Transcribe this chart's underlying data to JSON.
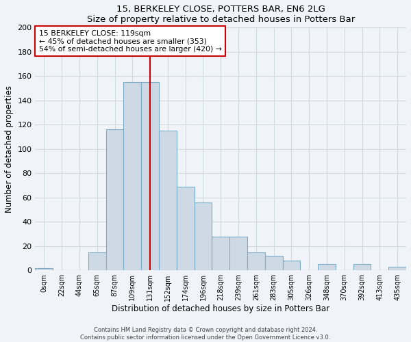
{
  "title": "15, BERKELEY CLOSE, POTTERS BAR, EN6 2LG",
  "subtitle": "Size of property relative to detached houses in Potters Bar",
  "xlabel": "Distribution of detached houses by size in Potters Bar",
  "ylabel": "Number of detached properties",
  "bin_labels": [
    "0sqm",
    "22sqm",
    "44sqm",
    "65sqm",
    "87sqm",
    "109sqm",
    "131sqm",
    "152sqm",
    "174sqm",
    "196sqm",
    "218sqm",
    "239sqm",
    "261sqm",
    "283sqm",
    "305sqm",
    "326sqm",
    "348sqm",
    "370sqm",
    "392sqm",
    "413sqm",
    "435sqm"
  ],
  "bar_heights": [
    2,
    0,
    0,
    15,
    116,
    155,
    155,
    115,
    69,
    56,
    28,
    28,
    15,
    12,
    8,
    0,
    5,
    0,
    5,
    0,
    3
  ],
  "bar_color": "#cdd9e5",
  "bar_edge_color": "#7badc8",
  "vline_x": 6.0,
  "vline_color": "#cc0000",
  "ylim": [
    0,
    200
  ],
  "yticks": [
    0,
    20,
    40,
    60,
    80,
    100,
    120,
    140,
    160,
    180,
    200
  ],
  "annotation_title": "15 BERKELEY CLOSE: 119sqm",
  "annotation_line1": "← 45% of detached houses are smaller (353)",
  "annotation_line2": "54% of semi-detached houses are larger (420) →",
  "annotation_box_facecolor": "#ffffff",
  "annotation_box_edgecolor": "#cc0000",
  "footer_line1": "Contains HM Land Registry data © Crown copyright and database right 2024.",
  "footer_line2": "Contains public sector information licensed under the Open Government Licence v3.0.",
  "plot_bg_color": "#f0f4f8",
  "fig_bg_color": "#f0f4f8",
  "grid_color": "#d0d8e0"
}
